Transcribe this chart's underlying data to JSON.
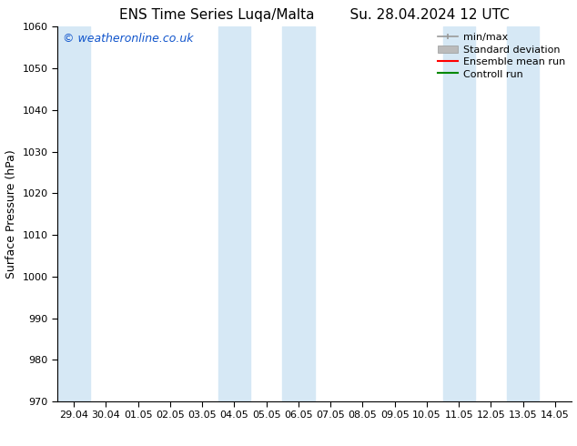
{
  "title_left": "ENS Time Series Luqa/Malta",
  "title_right": "Su. 28.04.2024 12 UTC",
  "ylabel": "Surface Pressure (hPa)",
  "ylim": [
    970,
    1060
  ],
  "yticks": [
    970,
    980,
    990,
    1000,
    1010,
    1020,
    1030,
    1040,
    1050,
    1060
  ],
  "xtick_labels": [
    "29.04",
    "30.04",
    "01.05",
    "02.05",
    "03.05",
    "04.05",
    "05.05",
    "06.05",
    "07.05",
    "08.05",
    "09.05",
    "10.05",
    "11.05",
    "12.05",
    "13.05",
    "14.05"
  ],
  "xtick_positions": [
    0,
    1,
    2,
    3,
    4,
    5,
    6,
    7,
    8,
    9,
    10,
    11,
    12,
    13,
    14,
    15
  ],
  "xlim": [
    -0.5,
    15.5
  ],
  "shaded_bands": [
    {
      "x_start": -0.5,
      "x_end": 0.5
    },
    {
      "x_start": 4.5,
      "x_end": 5.5
    },
    {
      "x_start": 6.5,
      "x_end": 7.5
    },
    {
      "x_start": 11.5,
      "x_end": 12.5
    },
    {
      "x_start": 13.5,
      "x_end": 14.5
    }
  ],
  "band_color": "#d6e8f5",
  "background_color": "#ffffff",
  "watermark_text": "© weatheronline.co.uk",
  "watermark_color": "#1155cc",
  "legend_entries": [
    "min/max",
    "Standard deviation",
    "Ensemble mean run",
    "Controll run"
  ],
  "legend_line_colors": [
    "#999999",
    "#bbbbbb",
    "#ff0000",
    "#008800"
  ],
  "title_fontsize": 11,
  "ylabel_fontsize": 9,
  "tick_fontsize": 8,
  "watermark_fontsize": 9,
  "legend_fontsize": 8
}
